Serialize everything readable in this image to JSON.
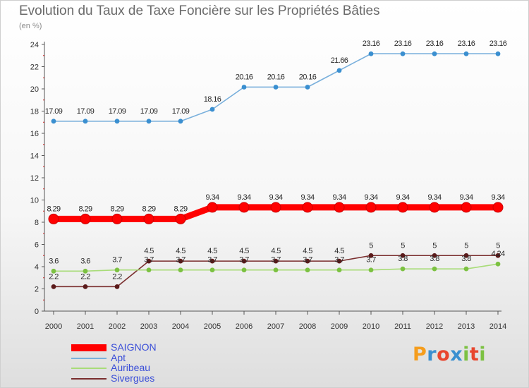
{
  "title": "Evolution du Taux de Taxe Foncière sur les Propriétés Bâties",
  "unit": "(en %)",
  "logo": [
    "P",
    "r",
    "o",
    "x",
    "i",
    "t",
    "i"
  ],
  "logo_colors": [
    "#f59d1d",
    "#3a8fd0",
    "#e8462e",
    "#3a8fd0",
    "#7cc142",
    "#e8462e",
    "#7cc142"
  ],
  "chart_data": {
    "type": "line",
    "x": [
      "2000",
      "2001",
      "2002",
      "2003",
      "2004",
      "2005",
      "2006",
      "2007",
      "2008",
      "2009",
      "2010",
      "2011",
      "2012",
      "2013",
      "2014"
    ],
    "ylim": [
      0,
      24
    ],
    "yticks": [
      "0",
      "2",
      "4",
      "6",
      "8",
      "10",
      "12",
      "14",
      "16",
      "18",
      "20",
      "22",
      "24"
    ],
    "grid": false,
    "legend_position": "bottom-left",
    "series": [
      {
        "name": "SAIGNON",
        "color": "#ff0000",
        "style": "thick",
        "values": [
          8.29,
          8.29,
          8.29,
          8.29,
          8.29,
          9.34,
          9.34,
          9.34,
          9.34,
          9.34,
          9.34,
          9.34,
          9.34,
          9.34,
          9.34
        ],
        "labels": [
          "8.29",
          "8.29",
          "8.29",
          "8.29",
          "8.29",
          "9.34",
          "9.34",
          "9.34",
          "9.34",
          "9.34",
          "9.34",
          "9.34",
          "9.34",
          "9.34",
          "9.34"
        ]
      },
      {
        "name": "Apt",
        "color": "#7ab0dc",
        "marker": "#3a8fd0",
        "values": [
          17.09,
          17.09,
          17.09,
          17.09,
          17.09,
          18.16,
          20.16,
          20.16,
          20.16,
          21.66,
          23.16,
          23.16,
          23.16,
          23.16,
          23.16
        ],
        "labels": [
          "17.09",
          "17.09",
          "17.09",
          "17.09",
          "17.09",
          "18.16",
          "20.16",
          "20.16",
          "20.16",
          "21.66",
          "23.16",
          "23.16",
          "23.16",
          "23.16",
          "23.16"
        ]
      },
      {
        "name": "Auribeau",
        "color": "#a8dc78",
        "marker": "#7cc142",
        "values": [
          3.6,
          3.6,
          3.7,
          3.7,
          3.7,
          3.7,
          3.7,
          3.7,
          3.7,
          3.7,
          3.7,
          3.8,
          3.8,
          3.8,
          4.24
        ],
        "labels": [
          "3.6",
          "3.6",
          "3.7",
          "3.7",
          "3.7",
          "3.7",
          "3.7",
          "3.7",
          "3.7",
          "3.7",
          "3.7",
          "3.8",
          "3.8",
          "3.8",
          "4.24"
        ]
      },
      {
        "name": "Sivergues",
        "color": "#7a2e2e",
        "marker": "#5a1a1a",
        "values": [
          2.2,
          2.2,
          2.2,
          4.5,
          4.5,
          4.5,
          4.5,
          4.5,
          4.5,
          4.5,
          5,
          5,
          5,
          5,
          5
        ],
        "labels": [
          "2.2",
          "2.2",
          "2.2",
          "4.5",
          "4.5",
          "4.5",
          "4.5",
          "4.5",
          "4.5",
          "4.5",
          "5",
          "5",
          "5",
          "5",
          "5"
        ]
      }
    ]
  }
}
